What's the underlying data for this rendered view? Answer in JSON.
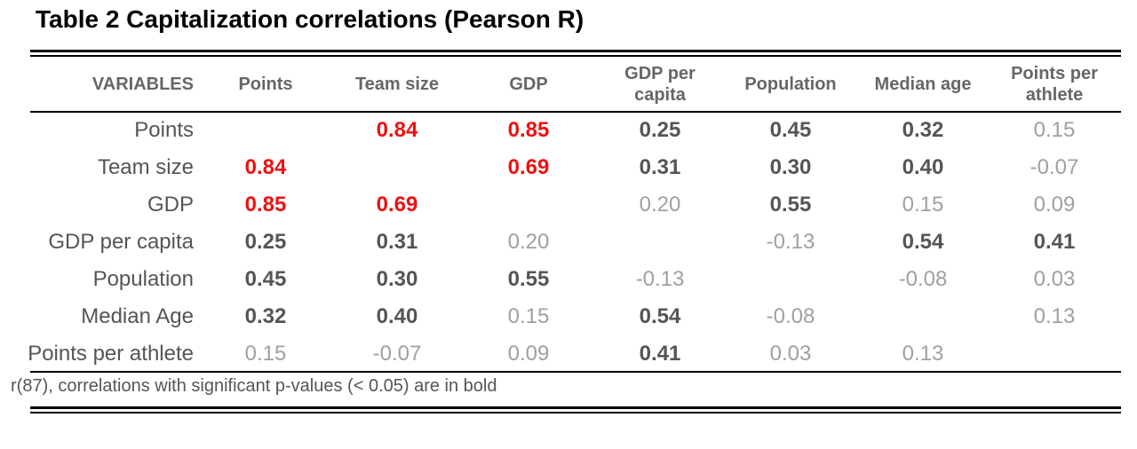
{
  "title": "Table 2 Capitalization correlations (Pearson R)",
  "header": {
    "variables": "VARIABLES",
    "points": "Points",
    "team_size": "Team size",
    "gdp": "GDP",
    "gdp_per_capita": "GDP per capita",
    "population": "Population",
    "median_age": "Median age",
    "points_per_athlete": "Points per athlete"
  },
  "rows": [
    {
      "label": "Points",
      "cells": [
        {
          "v": "",
          "s": "n"
        },
        {
          "v": "0.84",
          "s": "h"
        },
        {
          "v": "0.85",
          "s": "h"
        },
        {
          "v": "0.25",
          "s": "b"
        },
        {
          "v": "0.45",
          "s": "b"
        },
        {
          "v": "0.32",
          "s": "b"
        },
        {
          "v": "0.15",
          "s": "n"
        }
      ]
    },
    {
      "label": "Team size",
      "cells": [
        {
          "v": "0.84",
          "s": "h"
        },
        {
          "v": "",
          "s": "n"
        },
        {
          "v": "0.69",
          "s": "h"
        },
        {
          "v": "0.31",
          "s": "b"
        },
        {
          "v": "0.30",
          "s": "b"
        },
        {
          "v": "0.40",
          "s": "b"
        },
        {
          "v": "-0.07",
          "s": "n"
        }
      ]
    },
    {
      "label": "GDP",
      "cells": [
        {
          "v": "0.85",
          "s": "h"
        },
        {
          "v": "0.69",
          "s": "h"
        },
        {
          "v": "",
          "s": "n"
        },
        {
          "v": "0.20",
          "s": "n"
        },
        {
          "v": "0.55",
          "s": "b"
        },
        {
          "v": "0.15",
          "s": "n"
        },
        {
          "v": "0.09",
          "s": "n"
        }
      ]
    },
    {
      "label": "GDP per capita",
      "cells": [
        {
          "v": "0.25",
          "s": "b"
        },
        {
          "v": "0.31",
          "s": "b"
        },
        {
          "v": "0.20",
          "s": "n"
        },
        {
          "v": "",
          "s": "n"
        },
        {
          "v": "-0.13",
          "s": "n"
        },
        {
          "v": "0.54",
          "s": "b"
        },
        {
          "v": "0.41",
          "s": "b"
        }
      ]
    },
    {
      "label": "Population",
      "cells": [
        {
          "v": "0.45",
          "s": "b"
        },
        {
          "v": "0.30",
          "s": "b"
        },
        {
          "v": "0.55",
          "s": "b"
        },
        {
          "v": "-0.13",
          "s": "n"
        },
        {
          "v": "",
          "s": "n"
        },
        {
          "v": "-0.08",
          "s": "n"
        },
        {
          "v": "0.03",
          "s": "n"
        }
      ]
    },
    {
      "label": "Median Age",
      "cells": [
        {
          "v": "0.32",
          "s": "b"
        },
        {
          "v": "0.40",
          "s": "b"
        },
        {
          "v": "0.15",
          "s": "n"
        },
        {
          "v": "0.54",
          "s": "b"
        },
        {
          "v": "-0.08",
          "s": "n"
        },
        {
          "v": "",
          "s": "n"
        },
        {
          "v": "0.13",
          "s": "n"
        }
      ]
    },
    {
      "label": "Points per athlete",
      "cells": [
        {
          "v": "0.15",
          "s": "n"
        },
        {
          "v": "-0.07",
          "s": "n"
        },
        {
          "v": "0.09",
          "s": "n"
        },
        {
          "v": "0.41",
          "s": "b"
        },
        {
          "v": "0.03",
          "s": "n"
        },
        {
          "v": "0.13",
          "s": "n"
        },
        {
          "v": "",
          "s": "n"
        }
      ]
    }
  ],
  "note": "r(87), correlations with significant p-values (< 0.05) are in bold",
  "colors": {
    "highlight": "#ee1111",
    "significant": "#555555",
    "not_significant": "#a0a0a0"
  }
}
